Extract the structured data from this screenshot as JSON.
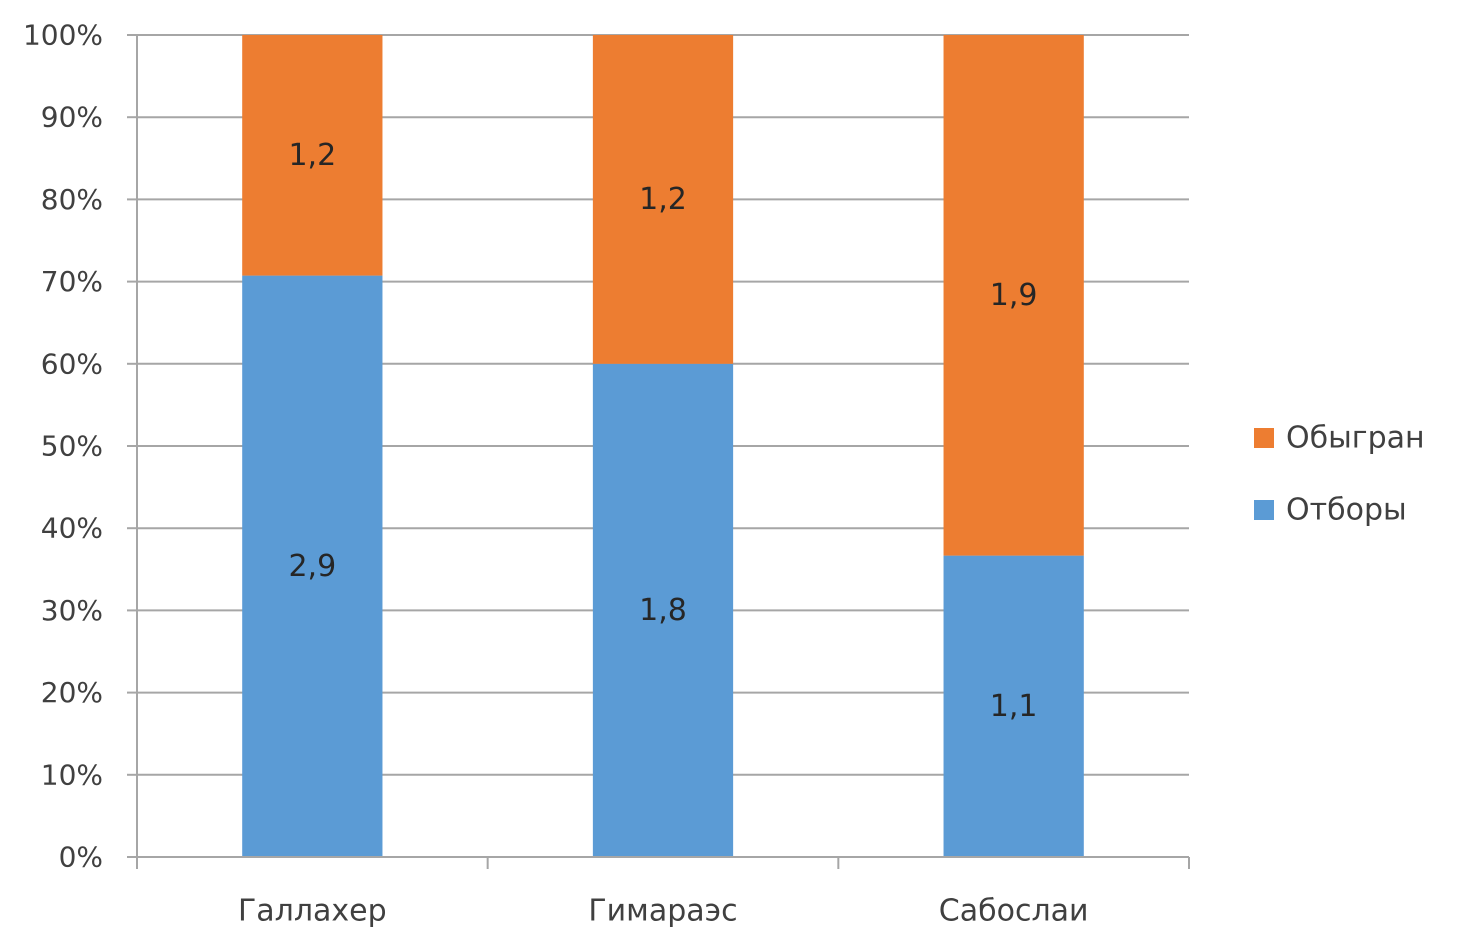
{
  "chart_data": {
    "type": "bar",
    "stacking": "percent",
    "categories": [
      "Галлахер",
      "Гимараэс",
      "Сабослаи"
    ],
    "series": [
      {
        "name": "Отборы",
        "values": [
          2.9,
          1.8,
          1.1
        ],
        "labels": [
          "2,9",
          "1,8",
          "1,1"
        ],
        "color": "#5B9BD5"
      },
      {
        "name": "Обыгран",
        "values": [
          1.2,
          1.2,
          1.9
        ],
        "labels": [
          "1,2",
          "1,2",
          "1,9"
        ],
        "color": "#ED7D31"
      }
    ],
    "y_ticks": [
      "0%",
      "10%",
      "20%",
      "30%",
      "40%",
      "50%",
      "60%",
      "70%",
      "80%",
      "90%",
      "100%"
    ],
    "ylim": [
      0,
      100
    ],
    "grid": true,
    "legend": {
      "position": "right",
      "order": [
        "Обыгран",
        "Отборы"
      ]
    }
  }
}
